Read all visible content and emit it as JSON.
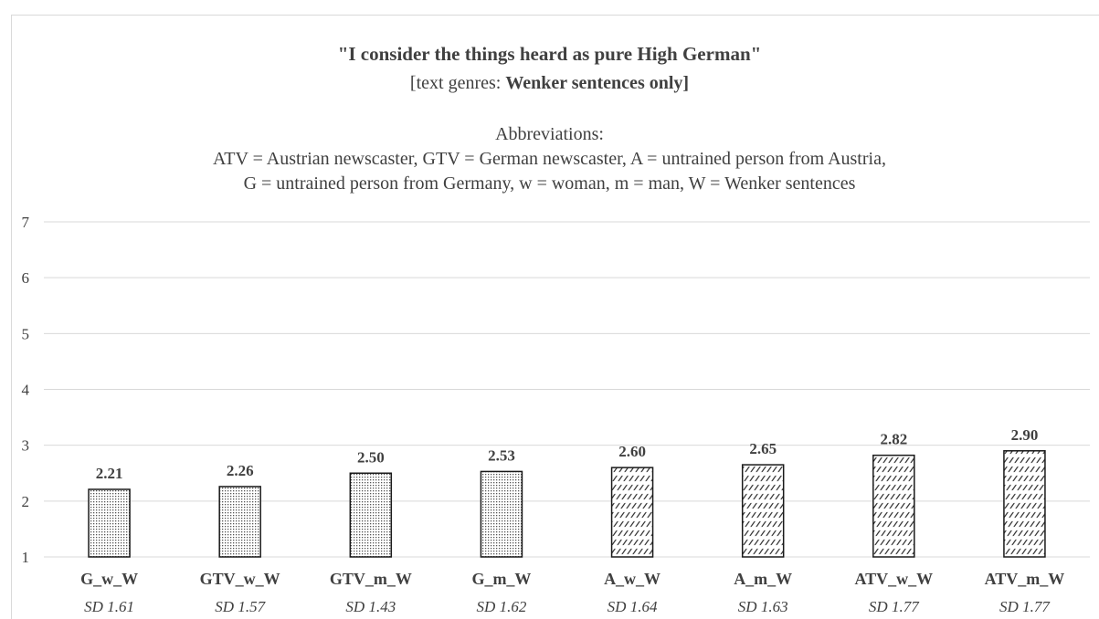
{
  "chart_data": {
    "type": "bar",
    "title": "\"I consider the things heard as pure High German\"",
    "subtitle_prefix": "[text genres: ",
    "subtitle_bold": "Wenker sentences only]",
    "abbreviations_heading": "Abbreviations:",
    "abbreviations_line1": "ATV = Austrian newscaster, GTV = German newscaster, A = untrained person from Austria,",
    "abbreviations_line2": "G = untrained person from Germany, w = woman, m = man, W = Wenker sentences",
    "categories": [
      "G_w_W",
      "GTV_w_W",
      "GTV_m_W",
      "G_m_W",
      "A_w_W",
      "A_m_W",
      "ATV_w_W",
      "ATV_m_W"
    ],
    "values": [
      2.21,
      2.26,
      2.5,
      2.53,
      2.6,
      2.65,
      2.82,
      2.9
    ],
    "value_labels": [
      "2.21",
      "2.26",
      "2.50",
      "2.53",
      "2.60",
      "2.65",
      "2.82",
      "2.90"
    ],
    "sd_labels": [
      "SD 1.61",
      "SD 1.57",
      "SD 1.43",
      "SD 1.62",
      "SD 1.64",
      "SD 1.63",
      "SD 1.77",
      "SD 1.77"
    ],
    "patterns": [
      "dots",
      "dots",
      "dots",
      "dots",
      "hatch",
      "hatch",
      "hatch",
      "hatch"
    ],
    "ylim": [
      1,
      7
    ],
    "yticks": [
      "1",
      "2",
      "3",
      "4",
      "5",
      "6",
      "7"
    ],
    "grid": true,
    "xlabel": "",
    "ylabel": "",
    "colors": {
      "text": "#404040",
      "grid": "#d9d9d9",
      "bar_outline": "#1a1a1a",
      "bar_fill": "#ffffff"
    }
  }
}
